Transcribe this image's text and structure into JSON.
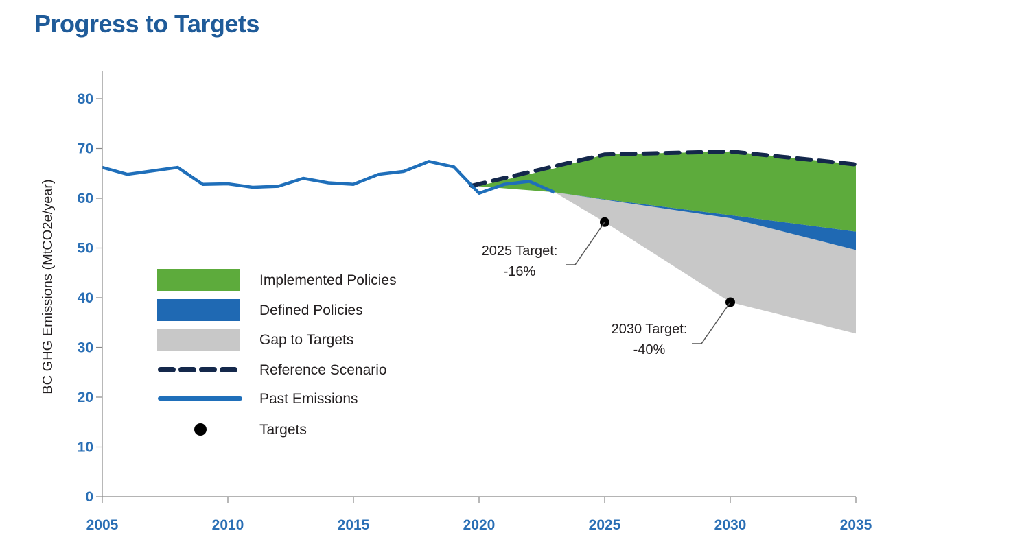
{
  "title": "Progress to Targets",
  "chart_data": {
    "type": "area",
    "title": "Progress to Targets",
    "xlabel": "",
    "ylabel": "BC GHG Emissions (MtCO2e/year)",
    "xlim": [
      2005,
      2035
    ],
    "ylim": [
      0,
      85
    ],
    "x_ticks": [
      2005,
      2010,
      2015,
      2020,
      2025,
      2030,
      2035
    ],
    "y_ticks": [
      0,
      10,
      20,
      30,
      40,
      50,
      60,
      70,
      80
    ],
    "grid": false,
    "legend_position": "left-center",
    "colors": {
      "implemented": "#5dab3c",
      "defined": "#1f69b3",
      "gap": "#c8c8c8",
      "reference": "#14284b",
      "past": "#1f6fba",
      "targets": "#000000",
      "tick": "#2a6fb5"
    },
    "series": [
      {
        "name": "Past Emissions",
        "kind": "line",
        "x": [
          2005,
          2006,
          2007,
          2008,
          2009,
          2010,
          2011,
          2012,
          2013,
          2014,
          2015,
          2016,
          2017,
          2018,
          2019,
          2020,
          2021,
          2022,
          2023
        ],
        "y": [
          66.2,
          64.8,
          65.5,
          66.2,
          62.8,
          62.9,
          62.2,
          62.4,
          64.0,
          63.1,
          62.8,
          64.8,
          65.4,
          67.4,
          66.3,
          61.0,
          62.8,
          63.4,
          61.2
        ]
      },
      {
        "name": "Reference Scenario",
        "kind": "dashed-line",
        "x": [
          2019.7,
          2025,
          2030,
          2035
        ],
        "y": [
          62.5,
          68.8,
          69.4,
          66.8
        ]
      },
      {
        "name": "Implemented Policies",
        "kind": "band",
        "x": [
          2020,
          2023,
          2025,
          2030,
          2035
        ],
        "upper": [
          62.5,
          66.0,
          68.8,
          69.4,
          66.8
        ],
        "lower": [
          62.4,
          61.2,
          59.8,
          56.6,
          53.3
        ]
      },
      {
        "name": "Defined Policies",
        "kind": "band",
        "x": [
          2023,
          2025,
          2030,
          2035
        ],
        "upper": [
          61.2,
          59.8,
          56.6,
          53.3
        ],
        "lower": [
          61.2,
          59.7,
          56.0,
          49.6
        ]
      },
      {
        "name": "Gap to Targets",
        "kind": "band",
        "x": [
          2023,
          2025,
          2030,
          2035
        ],
        "upper": [
          61.2,
          59.7,
          56.0,
          49.6
        ],
        "lower": [
          61.2,
          55.2,
          39.1,
          32.8
        ]
      },
      {
        "name": "Targets",
        "kind": "points",
        "x": [
          2025,
          2030
        ],
        "y": [
          55.2,
          39.1
        ]
      }
    ],
    "legend": [
      "Implemented Policies",
      "Defined Policies",
      "Gap to Targets",
      "Reference Scenario",
      "Past Emissions",
      "Targets"
    ],
    "annotations": [
      {
        "line1": "2025 Target:",
        "line2": "-16%",
        "x": 2025,
        "y": 55.2
      },
      {
        "line1": "2030 Target:",
        "line2": "-40%",
        "x": 2030,
        "y": 39.1
      }
    ]
  }
}
